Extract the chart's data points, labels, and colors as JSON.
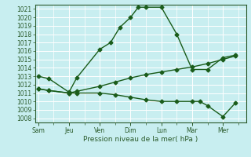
{
  "xlabel": "Pression niveau de la mer( hPa )",
  "bg_color": "#c8eef0",
  "grid_color": "#ffffff",
  "line_color": "#1a5c1a",
  "ylim": [
    1007.5,
    1021.5
  ],
  "yticks": [
    1008,
    1009,
    1010,
    1011,
    1012,
    1013,
    1014,
    1015,
    1016,
    1017,
    1018,
    1019,
    1020,
    1021
  ],
  "x_labels": [
    "Sam",
    "Jeu",
    "Ven",
    "Dim",
    "Lun",
    "Mar",
    "Mer"
  ],
  "x_positions": [
    0,
    2,
    4,
    6,
    8,
    10,
    12
  ],
  "xlim": [
    -0.2,
    13.5
  ],
  "line1_x": [
    0,
    0.7,
    2,
    2.5,
    4,
    4.7,
    5.3,
    6,
    6.5,
    7,
    8,
    9,
    10,
    11,
    12,
    12.8
  ],
  "line1_y": [
    1013.0,
    1012.7,
    1011.1,
    1012.8,
    1016.2,
    1017.0,
    1018.8,
    1020.0,
    1021.2,
    1021.2,
    1021.2,
    1018.0,
    1013.8,
    1013.8,
    1015.2,
    1015.5
  ],
  "line2_x": [
    0,
    0.7,
    2,
    2.5,
    4,
    5,
    6,
    7,
    8,
    9,
    10,
    11,
    12,
    12.8
  ],
  "line2_y": [
    1011.5,
    1011.3,
    1011.0,
    1011.2,
    1011.8,
    1012.3,
    1012.8,
    1013.2,
    1013.5,
    1013.8,
    1014.1,
    1014.5,
    1015.0,
    1015.4
  ],
  "line3_x": [
    0,
    0.7,
    2,
    2.5,
    4,
    5,
    6,
    7,
    8,
    9,
    10,
    10.5,
    11,
    12,
    12.8
  ],
  "line3_y": [
    1011.5,
    1011.3,
    1011.0,
    1011.0,
    1011.0,
    1010.8,
    1010.5,
    1010.2,
    1010.0,
    1010.0,
    1010.0,
    1010.0,
    1009.5,
    1008.2,
    1009.8
  ],
  "marker": "D",
  "markersize": 2.5,
  "linewidth": 1.0,
  "tick_fontsize": 5.5,
  "label_fontsize": 6.5
}
